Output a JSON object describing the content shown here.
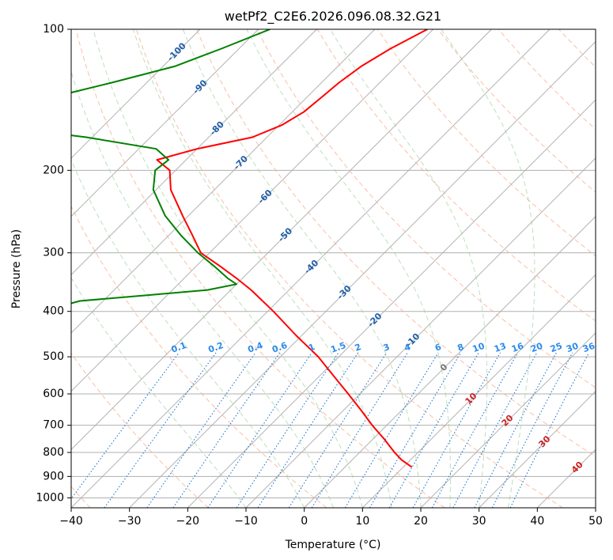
{
  "chart_data": {
    "type": "line",
    "title": "wetPf2_C2E6.2026.096.08.32.G21",
    "xlabel": "Temperature (°C)",
    "ylabel": "Pressure (hPa)",
    "xlim": [
      -40,
      50
    ],
    "ylim": [
      1050,
      100
    ],
    "y_scale": "log",
    "grid": true,
    "x_ticks": [
      -40,
      -30,
      -20,
      -10,
      0,
      10,
      20,
      30,
      40,
      50
    ],
    "x_tick_labels": [
      "−40",
      "−30",
      "−20",
      "−10",
      "0",
      "10",
      "20",
      "30",
      "40",
      "50"
    ],
    "y_ticks": [
      100,
      200,
      300,
      400,
      500,
      600,
      700,
      800,
      900,
      1000
    ],
    "y_tick_labels": [
      "100",
      "200",
      "300",
      "400",
      "500",
      "600",
      "700",
      "800",
      "900",
      "1000"
    ],
    "skew_lines": [
      -100,
      -90,
      -80,
      -70,
      -60,
      -50,
      -40,
      -30,
      -20,
      -10,
      0,
      10,
      20,
      30,
      40,
      50
    ],
    "dry_adiabats_theta_c": [
      -60,
      -40,
      -20,
      0,
      20,
      40,
      60,
      80,
      100,
      120,
      140,
      160,
      180,
      200,
      220,
      240,
      260,
      280
    ],
    "moist_adiabats_c": [
      -10,
      0,
      5,
      10,
      15,
      20,
      25,
      30,
      35
    ],
    "mixing_ratio_lines": [
      0.1,
      0.2,
      0.4,
      0.6,
      1,
      1.5,
      2,
      3,
      4,
      6,
      8,
      10,
      13,
      16,
      20,
      25,
      30,
      36
    ],
    "annotations": {
      "isotherm_labels": [
        {
          "text": "-100",
          "t": -100,
          "p": 112
        },
        {
          "text": "-90",
          "t": -90,
          "p": 133
        },
        {
          "text": "-80",
          "t": -80,
          "p": 163
        },
        {
          "text": "-70",
          "t": -70,
          "p": 193
        },
        {
          "text": "-60",
          "t": -60,
          "p": 228
        },
        {
          "text": "-50",
          "t": -50,
          "p": 275
        },
        {
          "text": "-40",
          "t": -40,
          "p": 322
        },
        {
          "text": "-30",
          "t": -30,
          "p": 365
        },
        {
          "text": "-20",
          "t": -20,
          "p": 418
        },
        {
          "text": "-10",
          "t": -10,
          "p": 462
        },
        {
          "text": "0",
          "t": 0,
          "p": 528
        },
        {
          "text": "10",
          "t": 10,
          "p": 615
        },
        {
          "text": "20",
          "t": 20,
          "p": 685
        },
        {
          "text": "30",
          "t": 30,
          "p": 760
        },
        {
          "text": "40",
          "t": 40,
          "p": 862
        }
      ],
      "mixing_ratio_labels": [
        "0.1",
        "0.2",
        "0.4",
        "0.6",
        "1",
        "1.5",
        "2",
        "3",
        "4",
        "6",
        "8",
        "10",
        "13",
        "16",
        "20",
        "25",
        "30",
        "36"
      ],
      "mixing_ratio_label_pressure": 490
    },
    "series": [
      {
        "color": "#ff0000",
        "p": [
          100,
          110,
          120,
          130,
          140,
          150,
          160,
          170,
          180,
          190,
          200,
          220,
          250,
          275,
          300,
          320,
          340,
          360,
          400,
          450,
          500,
          550,
          600,
          650,
          700,
          750,
          800,
          830,
          850,
          860
        ],
        "t": [
          -61,
          -64,
          -66,
          -67,
          -67.5,
          -68,
          -69.5,
          -72.5,
          -80,
          -85,
          -81,
          -77.5,
          -71,
          -66,
          -61.5,
          -56,
          -51,
          -46.5,
          -39,
          -31,
          -23.5,
          -17.5,
          -12,
          -7,
          -2.5,
          2,
          6,
          8.5,
          10.5,
          11.5
        ]
      },
      {
        "color": "#008000",
        "p": [
          100,
          110,
          120,
          130,
          140,
          150,
          155,
          160,
          170,
          180,
          190,
          200,
          220,
          250,
          275,
          300,
          320,
          340,
          350,
          360,
          370,
          380,
          400,
          420,
          440,
          460,
          480,
          500,
          540,
          570,
          600,
          630,
          660,
          690,
          720,
          750,
          770,
          790,
          800,
          810,
          830,
          850,
          860
        ],
        "t": [
          -88,
          -93,
          -98,
          -106,
          -114,
          -120,
          -125,
          -120,
          -101,
          -87,
          -83,
          -83.5,
          -80.5,
          -74,
          -68,
          -62,
          -57,
          -52.5,
          -50,
          -54,
          -64,
          -74,
          -79,
          -82,
          -82,
          -79,
          -74,
          -71,
          -72,
          -73,
          -69,
          -75,
          -82,
          -93,
          -104,
          -114,
          -119,
          -115,
          -112,
          -108,
          -96,
          -83,
          -80
        ]
      }
    ]
  }
}
